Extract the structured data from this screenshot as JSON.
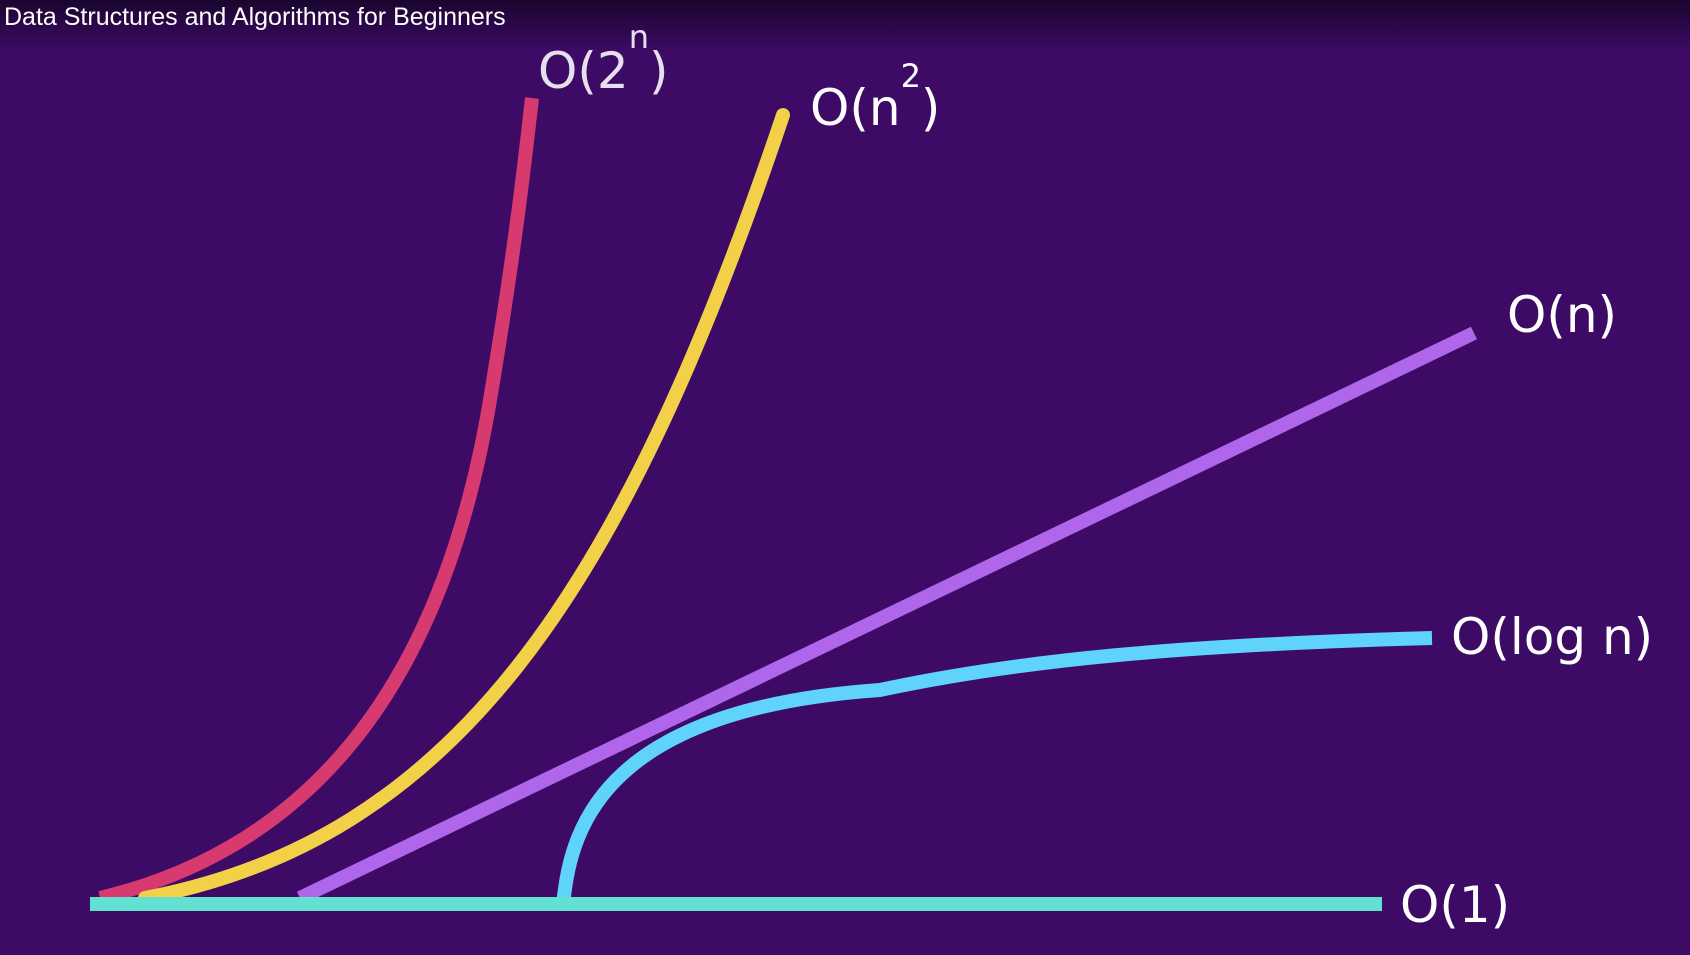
{
  "video": {
    "title": "Data Structures and Algorithms for Beginners"
  },
  "chart_data": {
    "type": "line",
    "series": [
      {
        "name": "O(2^n)",
        "label_main": "O(2",
        "label_sup": "n",
        "label_tail": ")",
        "color": "#d63a6e"
      },
      {
        "name": "O(n^2)",
        "label_main": "O(n",
        "label_sup": "2",
        "label_tail": ")",
        "color": "#f2d048"
      },
      {
        "name": "O(n)",
        "label_main": "O(n)",
        "color": "#b066ea"
      },
      {
        "name": "O(log n)",
        "label_main": "O(log n)",
        "color": "#5fd3fb"
      },
      {
        "name": "O(1)",
        "label_main": "O(1)",
        "color": "#62e0d2"
      }
    ]
  },
  "colors": {
    "background": "#3d0a66"
  }
}
